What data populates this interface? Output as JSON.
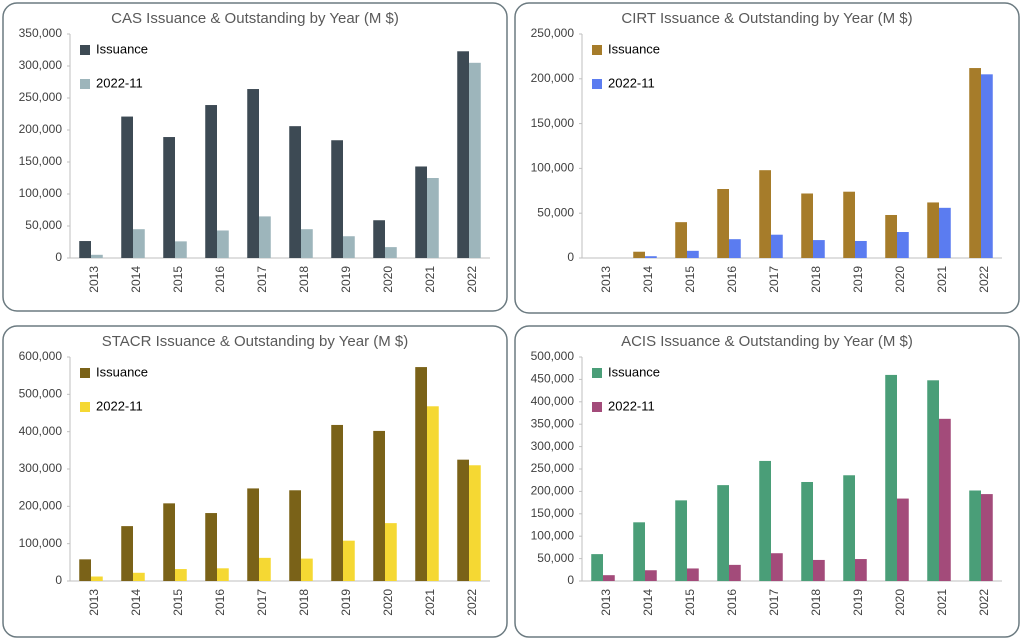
{
  "chart_data": [
    {
      "type": "bar",
      "title": "CAS Issuance & Outstanding by Year (M $)",
      "categories": [
        "2013",
        "2014",
        "2015",
        "2016",
        "2017",
        "2018",
        "2019",
        "2020",
        "2021",
        "2022"
      ],
      "series": [
        {
          "name": "Issuance",
          "color": "#3d4a54",
          "values": [
            26500,
            221000,
            189000,
            239000,
            264000,
            206000,
            184000,
            59000,
            143000,
            323000
          ]
        },
        {
          "name": "2022-11",
          "color": "#9db5bb",
          "values": [
            5000,
            45000,
            26000,
            43000,
            65000,
            45000,
            34000,
            17000,
            125000,
            305000
          ]
        }
      ],
      "ylim": [
        0,
        350000
      ],
      "yticks": [
        0,
        {
          "value": 50000,
          "label": "50,000"
        },
        {
          "value": 100000,
          "label": "100,000"
        },
        {
          "value": 150000,
          "label": "150,000"
        },
        {
          "value": 200000,
          "label": "200,000"
        },
        {
          "value": 250000,
          "label": "250,000"
        },
        {
          "value": 300000,
          "label": "300,000"
        },
        {
          "value": 350000,
          "label": "350,000"
        }
      ]
    },
    {
      "type": "bar",
      "title": "CIRT Issuance & Outstanding by Year (M $)",
      "categories": [
        "2013",
        "2014",
        "2015",
        "2016",
        "2017",
        "2018",
        "2019",
        "2020",
        "2021",
        "2022"
      ],
      "series": [
        {
          "name": "Issuance",
          "color": "#a67c2a",
          "values": [
            0,
            7000,
            40000,
            77000,
            98000,
            72000,
            74000,
            48000,
            62000,
            212000
          ]
        },
        {
          "name": "2022-11",
          "color": "#5b7cf0",
          "values": [
            0,
            2000,
            8000,
            21000,
            26000,
            20000,
            19000,
            29000,
            56000,
            205000
          ]
        }
      ],
      "ylim": [
        0,
        250000
      ],
      "yticks": [
        0,
        {
          "value": 50000,
          "label": "50,000"
        },
        {
          "value": 100000,
          "label": "100,000"
        },
        {
          "value": 150000,
          "label": "150,000"
        },
        {
          "value": 200000,
          "label": "200,000"
        },
        {
          "value": 250000,
          "label": "250,000"
        }
      ]
    },
    {
      "type": "bar",
      "title": "STACR Issuance & Outstanding by Year (M $)",
      "categories": [
        "2013",
        "2014",
        "2015",
        "2016",
        "2017",
        "2018",
        "2019",
        "2020",
        "2021",
        "2022"
      ],
      "series": [
        {
          "name": "Issuance",
          "color": "#7a6218",
          "values": [
            58000,
            147000,
            208000,
            182000,
            248000,
            243000,
            418000,
            402000,
            573000,
            325000
          ]
        },
        {
          "name": "2022-11",
          "color": "#f5d833",
          "values": [
            12000,
            22000,
            32000,
            34000,
            62000,
            60000,
            108000,
            155000,
            468000,
            310000
          ]
        }
      ],
      "ylim": [
        0,
        600000
      ],
      "yticks": [
        0,
        {
          "value": 100000,
          "label": "100,000"
        },
        {
          "value": 200000,
          "label": "200,000"
        },
        {
          "value": 300000,
          "label": "300,000"
        },
        {
          "value": 400000,
          "label": "400,000"
        },
        {
          "value": 500000,
          "label": "500,000"
        },
        {
          "value": 600000,
          "label": "600,000"
        }
      ]
    },
    {
      "type": "bar",
      "title": "ACIS Issuance & Outstanding by Year (M $)",
      "categories": [
        "2013",
        "2014",
        "2015",
        "2016",
        "2017",
        "2018",
        "2019",
        "2020",
        "2021",
        "2022"
      ],
      "series": [
        {
          "name": "Issuance",
          "color": "#4a9e78",
          "values": [
            60000,
            131000,
            180000,
            214000,
            268000,
            221000,
            236000,
            460000,
            448000,
            202000
          ]
        },
        {
          "name": "2022-11",
          "color": "#a34b7a",
          "values": [
            13000,
            24000,
            28000,
            36000,
            62000,
            47000,
            49000,
            184000,
            362000,
            194000
          ]
        }
      ],
      "ylim": [
        0,
        500000
      ],
      "yticks": [
        0,
        {
          "value": 50000,
          "label": "50,000"
        },
        {
          "value": 100000,
          "label": "100,000"
        },
        {
          "value": 150000,
          "label": "150,000"
        },
        {
          "value": 200000,
          "label": "200,000"
        },
        {
          "value": 250000,
          "label": "250,000"
        },
        {
          "value": 300000,
          "label": "300,000"
        },
        {
          "value": 350000,
          "label": "350,000"
        },
        {
          "value": 400000,
          "label": "400,000"
        },
        {
          "value": 450000,
          "label": "450,000"
        },
        {
          "value": 500000,
          "label": "500,000"
        }
      ]
    }
  ]
}
